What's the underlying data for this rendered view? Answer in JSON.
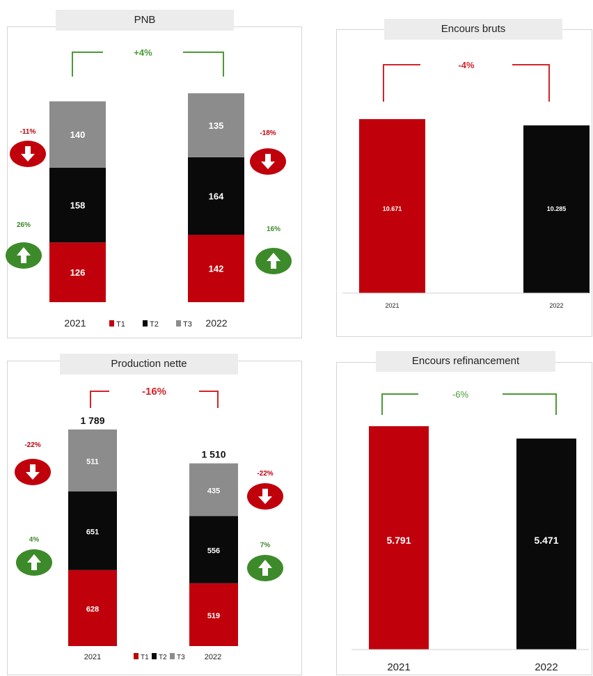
{
  "colors": {
    "red": "#c0000b",
    "black": "#0a0a0a",
    "gray": "#8c8c8c",
    "green": "#3d8a2a",
    "bracket_red": "#d2232a",
    "bracket_green": "#4a9a34"
  },
  "chart_data": [
    {
      "id": "pnb",
      "type": "bar",
      "stacked": true,
      "title": "PNB",
      "categories": [
        "2021",
        "2022"
      ],
      "series": [
        {
          "name": "T1",
          "values": [
            126,
            142
          ]
        },
        {
          "name": "T2",
          "values": [
            158,
            164
          ]
        },
        {
          "name": "T3",
          "values": [
            140,
            135
          ]
        }
      ],
      "legend": [
        "T1",
        "T2",
        "T3"
      ],
      "legend_placement": "bottom",
      "change_label": "+4%",
      "change_color": "green",
      "annotations_left": [
        {
          "text": "-11%",
          "direction": "down"
        },
        {
          "text": "26%",
          "direction": "up"
        }
      ],
      "annotations_right": [
        {
          "text": "-18%",
          "direction": "down"
        },
        {
          "text": "16%",
          "direction": "up"
        }
      ]
    },
    {
      "id": "encours-bruts",
      "type": "bar",
      "title": "Encours bruts",
      "categories": [
        "2021",
        "2022"
      ],
      "values": [
        10.671,
        10.285
      ],
      "data_labels": [
        "10.671",
        "10.285"
      ],
      "change_label": "-4%",
      "change_color": "red"
    },
    {
      "id": "production-nette",
      "type": "bar",
      "stacked": true,
      "title": "Production nette",
      "categories": [
        "2021",
        "2022"
      ],
      "series": [
        {
          "name": "T1",
          "values": [
            628,
            519
          ]
        },
        {
          "name": "T2",
          "values": [
            651,
            556
          ]
        },
        {
          "name": "T3",
          "values": [
            511,
            435
          ]
        }
      ],
      "totals": [
        "1 789",
        "1 510"
      ],
      "legend": [
        "T1",
        "T2",
        "T3"
      ],
      "legend_placement": "bottom",
      "change_label": "-16%",
      "change_color": "red",
      "annotations_left": [
        {
          "text": "-22%",
          "direction": "down"
        },
        {
          "text": "4%",
          "direction": "up"
        }
      ],
      "annotations_right": [
        {
          "text": "-22%",
          "direction": "down"
        },
        {
          "text": "7%",
          "direction": "up"
        }
      ]
    },
    {
      "id": "encours-refinancement",
      "type": "bar",
      "title": "Encours refinancement",
      "categories": [
        "2021",
        "2022"
      ],
      "values": [
        5.791,
        5.471
      ],
      "data_labels": [
        "5.791",
        "5.471"
      ],
      "change_label": "-6%",
      "change_color": "green"
    }
  ]
}
